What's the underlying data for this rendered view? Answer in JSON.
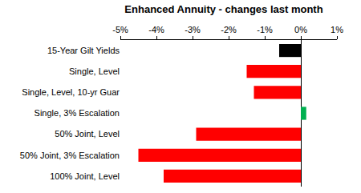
{
  "chart_data": {
    "type": "bar",
    "title": "Enhanced Annuity - changes last month",
    "orientation": "horizontal",
    "categories": [
      "15-Year Gilt Yields",
      "Single, Level",
      "Single, Level, 10-yr Guar",
      "Single, 3% Escalation",
      "50% Joint, Level",
      "50% Joint, 3% Escalation",
      "100% Joint, Level"
    ],
    "values": [
      -0.6,
      -1.5,
      -1.3,
      0.15,
      -2.9,
      -4.5,
      -3.8
    ],
    "colors": [
      "#000000",
      "#ff0000",
      "#ff0000",
      "#00b050",
      "#ff0000",
      "#ff0000",
      "#ff0000"
    ],
    "xlim": [
      -5,
      1
    ],
    "xticks": [
      {
        "value": -5,
        "label": "-5%"
      },
      {
        "value": -4,
        "label": "-4%"
      },
      {
        "value": -3,
        "label": "-3%"
      },
      {
        "value": -2,
        "label": "-2%"
      },
      {
        "value": -1,
        "label": "-1%"
      },
      {
        "value": 0,
        "label": "0%"
      },
      {
        "value": 1,
        "label": "1%"
      }
    ],
    "grid": false
  }
}
